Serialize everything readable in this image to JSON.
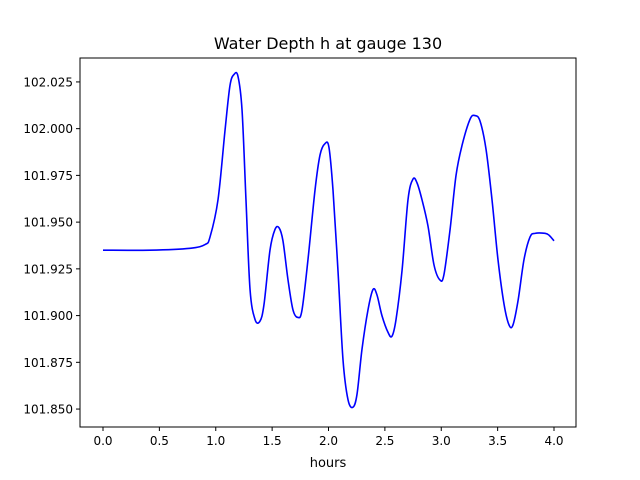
{
  "chart_data": {
    "type": "line",
    "title": "Water Depth h at gauge 130",
    "xlabel": "hours",
    "ylabel": "",
    "xlim": [
      -0.204,
      4.195
    ],
    "ylim": [
      101.8404,
      102.0378
    ],
    "xticks": [
      0.0,
      0.5,
      1.0,
      1.5,
      2.0,
      2.5,
      3.0,
      3.5,
      4.0
    ],
    "xtick_labels": [
      "0.0",
      "0.5",
      "1.0",
      "1.5",
      "2.0",
      "2.5",
      "3.0",
      "3.5",
      "4.0"
    ],
    "yticks": [
      101.85,
      101.875,
      101.9,
      101.925,
      101.95,
      101.975,
      102.0,
      102.025
    ],
    "ytick_labels": [
      "101.850",
      "101.875",
      "101.900",
      "101.925",
      "101.950",
      "101.975",
      "102.000",
      "102.025"
    ],
    "grid": false,
    "series": [
      {
        "name": "h",
        "color": "#0000ff",
        "x": [
          0.0,
          0.417,
          0.772,
          0.905,
          0.949,
          1.02,
          1.082,
          1.126,
          1.162,
          1.197,
          1.233,
          1.268,
          1.304,
          1.348,
          1.392,
          1.428,
          1.481,
          1.525,
          1.561,
          1.596,
          1.641,
          1.685,
          1.729,
          1.765,
          1.818,
          1.88,
          1.925,
          1.969,
          2.004,
          2.04,
          2.084,
          2.129,
          2.173,
          2.217,
          2.253,
          2.297,
          2.35,
          2.395,
          2.43,
          2.474,
          2.528,
          2.563,
          2.599,
          2.652,
          2.705,
          2.749,
          2.785,
          2.829,
          2.882,
          2.936,
          2.989,
          3.024,
          3.078,
          3.131,
          3.184,
          3.255,
          3.299,
          3.344,
          3.397,
          3.45,
          3.503,
          3.557,
          3.601,
          3.636,
          3.681,
          3.734,
          3.787,
          3.831,
          3.92,
          3.956,
          4.0
        ],
        "y": [
          101.935,
          101.935,
          101.936,
          101.938,
          101.942,
          101.962,
          101.999,
          102.023,
          102.029,
          102.028,
          102.01,
          101.962,
          101.914,
          101.898,
          101.897,
          101.906,
          101.935,
          101.946,
          101.947,
          101.94,
          101.919,
          101.903,
          101.899,
          101.903,
          101.93,
          101.967,
          101.986,
          101.992,
          101.99,
          101.967,
          101.924,
          101.876,
          101.855,
          101.851,
          101.858,
          101.882,
          101.903,
          101.914,
          101.911,
          101.9,
          101.891,
          101.889,
          101.898,
          101.924,
          101.962,
          101.973,
          101.971,
          101.962,
          101.948,
          101.927,
          101.919,
          101.922,
          101.946,
          101.975,
          101.991,
          102.005,
          102.007,
          102.004,
          101.989,
          101.962,
          101.93,
          101.906,
          101.895,
          101.895,
          101.908,
          101.93,
          101.942,
          101.944,
          101.944,
          101.943,
          101.94
        ]
      }
    ]
  }
}
